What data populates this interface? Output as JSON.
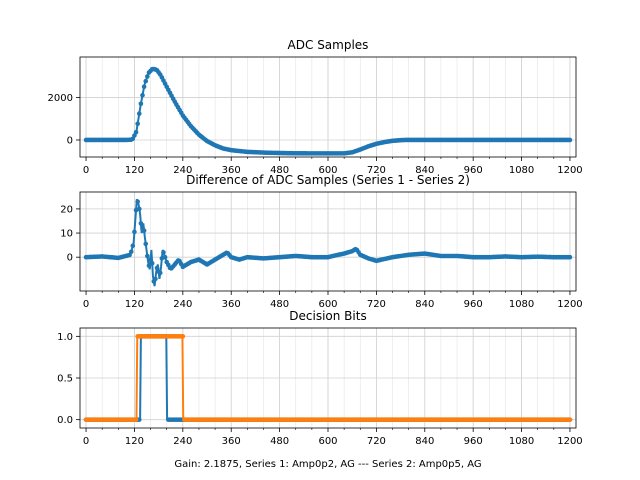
{
  "colors": {
    "series1": "#1f77b4",
    "series2": "#ff7f0e",
    "grid": "#d0d0d0"
  },
  "figure_xlabel": "Gain: 2.1875, Series 1: Amp0p2, AG --- Series 2: Amp0p5, AG",
  "chart_data": [
    {
      "type": "line",
      "title": "ADC Samples",
      "xlim": [
        -15,
        1215
      ],
      "ylim": [
        -800,
        3900
      ],
      "x_ticks": [
        0,
        120,
        240,
        360,
        480,
        600,
        720,
        840,
        960,
        1080,
        1200
      ],
      "y_ticks": [
        0,
        2000
      ],
      "grid": true,
      "series": [
        {
          "x": [
            0,
            100,
            115,
            125,
            135,
            145,
            155,
            165,
            175,
            185,
            200,
            220,
            240,
            260,
            280,
            300,
            320,
            340,
            360,
            400,
            450,
            500,
            550,
            600,
            640,
            660,
            680,
            700,
            720,
            740,
            760,
            780,
            790,
            800,
            840,
            900,
            1000,
            1100,
            1200
          ],
          "y": [
            0,
            0,
            20,
            400,
            1600,
            2600,
            3150,
            3350,
            3300,
            3050,
            2500,
            1800,
            1150,
            650,
            250,
            -50,
            -250,
            -400,
            -480,
            -560,
            -600,
            -620,
            -630,
            -630,
            -630,
            -580,
            -450,
            -300,
            -180,
            -100,
            -40,
            -10,
            0,
            0,
            0,
            0,
            0,
            0,
            0
          ]
        }
      ]
    },
    {
      "type": "line",
      "title": "Difference of ADC Samples (Series 1 - Series 2)",
      "xlim": [
        -15,
        1215
      ],
      "ylim": [
        -14,
        27
      ],
      "x_ticks": [
        0,
        120,
        240,
        360,
        480,
        600,
        720,
        840,
        960,
        1080,
        1200
      ],
      "y_ticks": [
        0,
        10,
        20
      ],
      "grid": true,
      "series": [
        {
          "x": [
            0,
            40,
            80,
            110,
            118,
            122,
            126,
            130,
            134,
            138,
            142,
            146,
            150,
            154,
            158,
            162,
            166,
            170,
            174,
            178,
            182,
            186,
            190,
            200,
            210,
            220,
            230,
            240,
            260,
            280,
            300,
            320,
            340,
            350,
            360,
            380,
            400,
            440,
            480,
            520,
            560,
            600,
            620,
            640,
            660,
            670,
            680,
            700,
            720,
            760,
            800,
            840,
            880,
            920,
            960,
            1000,
            1040,
            1080,
            1120,
            1160,
            1200
          ],
          "y": [
            0,
            0.3,
            -0.3,
            1,
            6,
            15,
            24,
            22,
            18,
            10,
            14,
            8,
            3,
            -2,
            -5,
            3,
            -8,
            -12,
            -6,
            -3,
            -9,
            -4,
            3,
            -2,
            -5,
            -3,
            -1,
            -4,
            -2,
            -1,
            -3,
            -1,
            1,
            2,
            0,
            -1,
            0,
            -0.5,
            0,
            0.5,
            0,
            0,
            0.8,
            1.5,
            2.5,
            3.5,
            1,
            -0.5,
            -1.5,
            0,
            1,
            1.5,
            0.5,
            0.5,
            0,
            0,
            0.3,
            0,
            0.2,
            0,
            0
          ]
        }
      ]
    },
    {
      "type": "line",
      "title": "Decision Bits",
      "xlim": [
        -15,
        1215
      ],
      "ylim": [
        -0.1,
        1.1
      ],
      "x_ticks": [
        0,
        120,
        240,
        360,
        480,
        600,
        720,
        840,
        960,
        1080,
        1200
      ],
      "y_ticks": [
        0.0,
        0.5,
        1.0
      ],
      "y_tick_labels": [
        "0.0",
        "0.5",
        "1.0"
      ],
      "grid": true,
      "series": [
        {
          "x": [
            0,
            134,
            136,
            199,
            201,
            1200
          ],
          "y": [
            0,
            0,
            1,
            1,
            0,
            0
          ]
        },
        {
          "x": [
            0,
            125,
            127,
            239,
            241,
            1200
          ],
          "y": [
            0,
            0,
            1,
            1,
            0,
            0
          ]
        }
      ]
    }
  ]
}
